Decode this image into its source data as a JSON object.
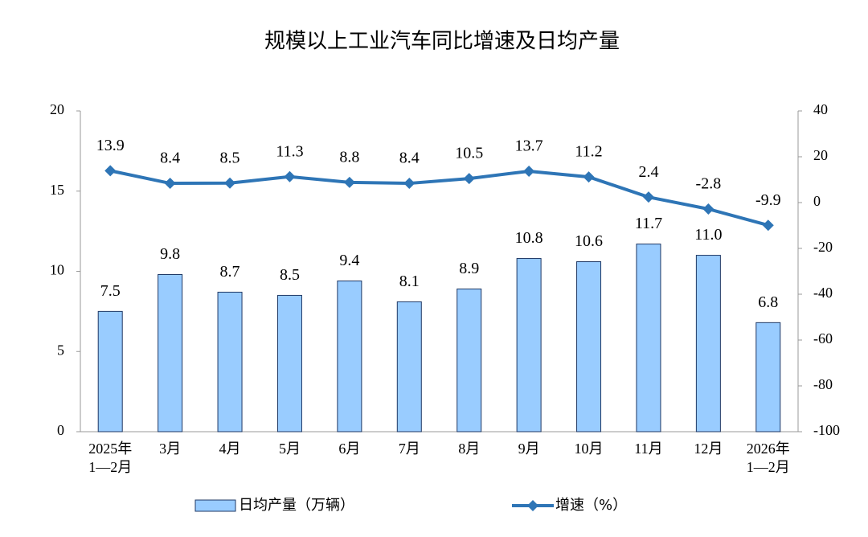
{
  "chart_data": {
    "type": "bar-line",
    "title": "规模以上工业汽车同比增速及日均产量",
    "categories": [
      "2025年\n1—2月",
      "3月",
      "4月",
      "5月",
      "6月",
      "7月",
      "8月",
      "9月",
      "10月",
      "11月",
      "12月",
      "2026年\n1—2月"
    ],
    "series": [
      {
        "name": "日均产量（万辆）",
        "type": "bar",
        "color": "#99ccff",
        "values": [
          7.5,
          9.8,
          8.7,
          8.5,
          9.4,
          8.1,
          8.9,
          10.8,
          10.6,
          11.7,
          11.0,
          6.8
        ],
        "value_labels": [
          "7.5",
          "9.8",
          "8.7",
          "8.5",
          "9.4",
          "8.1",
          "8.9",
          "10.8",
          "10.6",
          "11.7",
          "11.0",
          "6.8"
        ]
      },
      {
        "name": "增速（%）",
        "type": "line",
        "axis": "y2",
        "color": "#2e75b6",
        "values": [
          13.9,
          8.4,
          8.5,
          11.3,
          8.8,
          8.4,
          10.5,
          13.7,
          11.2,
          2.4,
          -2.8,
          -9.9
        ]
      }
    ],
    "ylim": [
      0,
      20
    ],
    "yticks": [
      0,
      5,
      10,
      15,
      20
    ],
    "y2lim": [
      -100,
      40
    ],
    "y2ticks": [
      -100,
      -80,
      -60,
      -40,
      -20,
      0,
      20,
      40
    ],
    "grid": false,
    "legend": "bottom"
  }
}
